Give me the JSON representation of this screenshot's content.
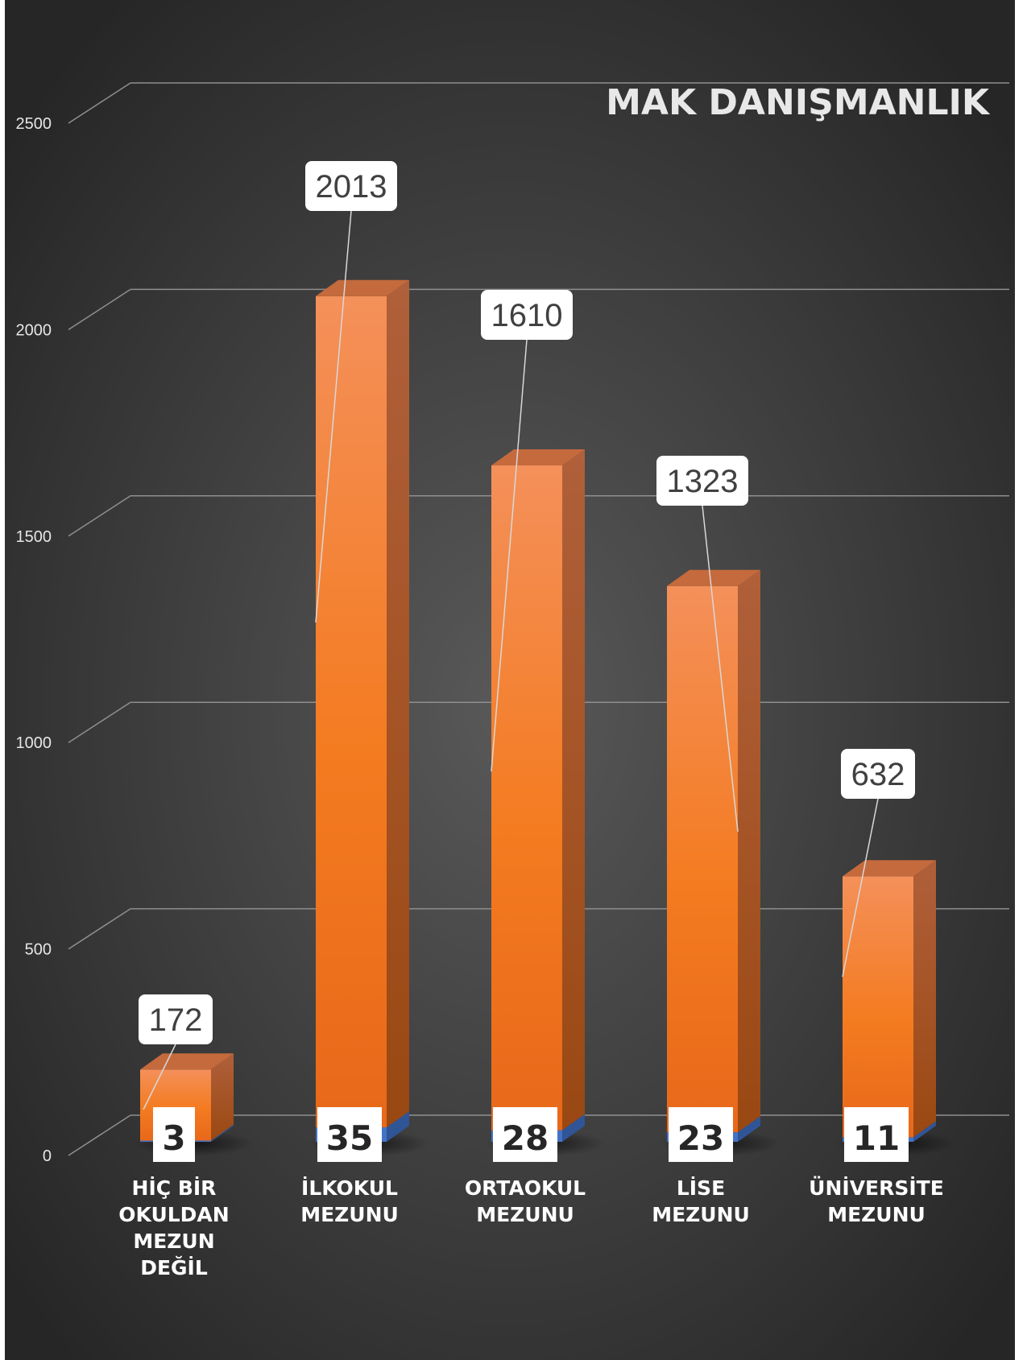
{
  "watermark": "MAK DANIŞMANLIK",
  "chart_data": {
    "type": "bar",
    "stacked": true,
    "three_d": true,
    "categories": [
      [
        "HİÇ BİR",
        "OKULDAN",
        "MEZUN",
        "DEĞİL"
      ],
      [
        "İLKOKUL",
        "MEZUNU"
      ],
      [
        "ORTAOKUL",
        "MEZUNU"
      ],
      [
        "LİSE",
        "MEZUNU"
      ],
      [
        "ÜNİVERSİTE",
        "MEZUNU"
      ]
    ],
    "series": [
      {
        "values": [
          3,
          35,
          28,
          23,
          11
        ],
        "color": "#4472c4"
      },
      {
        "values": [
          172,
          2013,
          1610,
          1323,
          632
        ],
        "color": "#f47b20"
      }
    ],
    "ylim": [
      0,
      2500
    ],
    "yticks": [
      0,
      500,
      1000,
      1500,
      2000,
      2500
    ],
    "grid": true,
    "legend": "none",
    "background": "#3a3a3a"
  }
}
